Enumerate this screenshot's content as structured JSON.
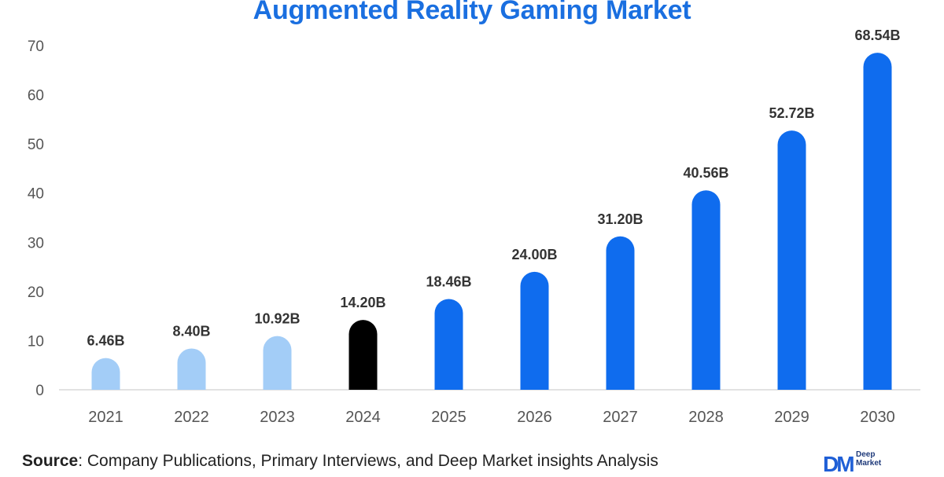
{
  "chart_data": {
    "type": "bar",
    "title": "Augmented Reality Gaming Market",
    "categories": [
      "2021",
      "2022",
      "2023",
      "2024",
      "2025",
      "2026",
      "2027",
      "2028",
      "2029",
      "2030"
    ],
    "values": [
      6.46,
      8.4,
      10.92,
      14.2,
      18.46,
      24.0,
      31.2,
      40.56,
      52.72,
      68.54
    ],
    "value_labels": [
      "6.46B",
      "8.40B",
      "10.92B",
      "14.20B",
      "18.46B",
      "24.00B",
      "31.20B",
      "40.56B",
      "52.72B",
      "68.54B"
    ],
    "bar_colors": [
      "#a3cdf7",
      "#a3cdf7",
      "#a3cdf7",
      "#000000",
      "#0f6cee",
      "#0f6cee",
      "#0f6cee",
      "#0f6cee",
      "#0f6cee",
      "#0f6cee"
    ],
    "ylim": [
      0,
      70
    ],
    "yticks": [
      0,
      10,
      20,
      30,
      40,
      50,
      60,
      70
    ],
    "xlabel": "",
    "ylabel": "",
    "grid": false,
    "legend": "none"
  },
  "footer": {
    "source_key": "Source",
    "source_text": ": Company Publications, Primary Interviews, and Deep Market insights Analysis"
  },
  "logo": {
    "mark": "DM",
    "line1": "Deep",
    "line2": "Market"
  },
  "colors": {
    "title": "#1a6fe0",
    "axis": "#d9d9d9"
  }
}
